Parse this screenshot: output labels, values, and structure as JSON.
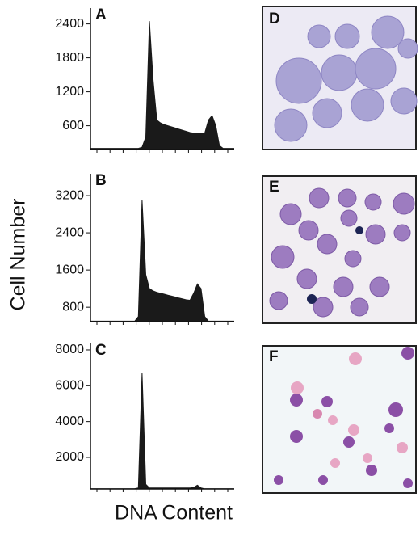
{
  "ylabel": "Cell Number",
  "xlabel": "DNA Content",
  "chart_data": [
    {
      "type": "area",
      "title": "A",
      "color": "#1a1a1a",
      "ylim": [
        180,
        2680
      ],
      "yticks": [
        600,
        1200,
        1800,
        2400
      ],
      "values": [
        200,
        200,
        200,
        200,
        200,
        200,
        200,
        200,
        200,
        200,
        200,
        200,
        200,
        200,
        220,
        400,
        2450,
        1400,
        700,
        650,
        620,
        600,
        580,
        560,
        540,
        520,
        500,
        480,
        470,
        460,
        460,
        470,
        700,
        780,
        600,
        250,
        200,
        200,
        200,
        200
      ]
    },
    {
      "type": "area",
      "title": "B",
      "color": "#1a1a1a",
      "ylim": [
        490,
        3670
      ],
      "yticks": [
        800,
        1600,
        2400,
        3200
      ],
      "values": [
        500,
        500,
        500,
        500,
        500,
        500,
        500,
        500,
        500,
        500,
        500,
        500,
        500,
        600,
        3100,
        1500,
        1200,
        1150,
        1120,
        1100,
        1080,
        1060,
        1040,
        1020,
        1000,
        980,
        960,
        950,
        1100,
        1300,
        1200,
        600,
        500,
        500,
        500,
        500,
        500,
        500,
        500,
        500
      ]
    },
    {
      "type": "area",
      "title": "C",
      "color": "#1a1a1a",
      "ylim": [
        240,
        8360
      ],
      "yticks": [
        2000,
        4000,
        6000,
        8000
      ],
      "values": [
        250,
        250,
        250,
        250,
        250,
        250,
        250,
        250,
        250,
        250,
        250,
        250,
        260,
        300,
        6700,
        500,
        300,
        300,
        300,
        300,
        300,
        300,
        300,
        300,
        300,
        300,
        300,
        300,
        320,
        450,
        300,
        250,
        250,
        250,
        250,
        250,
        250,
        250,
        250,
        250
      ]
    }
  ],
  "panels": [
    {
      "label": "D"
    },
    {
      "label": "E"
    },
    {
      "label": "F"
    }
  ]
}
